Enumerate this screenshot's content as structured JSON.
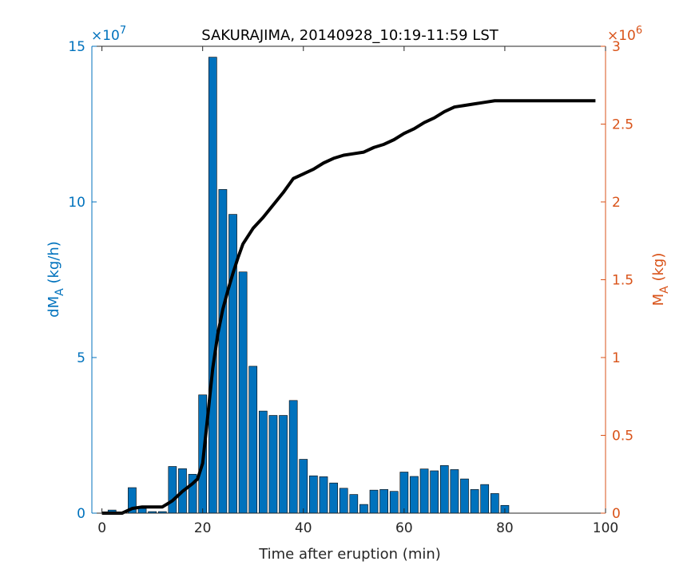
{
  "chart_data": {
    "type": "bar+line",
    "title": "SAKURAJIMA, 20140928_10:19-11:59 LST",
    "xlabel": "Time after eruption (min)",
    "ylabel_left": {
      "main": "dM",
      "sub": "A",
      "unit": " (kg/h)"
    },
    "ylabel_right": {
      "main": "M",
      "sub": "A",
      "unit": " (kg)"
    },
    "xlim": [
      -2,
      100
    ],
    "ylim_left": [
      0,
      15
    ],
    "ylim_right": [
      0,
      3
    ],
    "left_exponent": {
      "base": "×10",
      "power": "7"
    },
    "right_exponent": {
      "base": "×10",
      "power": "6"
    },
    "x_ticks": [
      "0",
      "20",
      "40",
      "60",
      "80",
      "100"
    ],
    "x_tick_values": [
      0,
      20,
      40,
      60,
      80,
      100
    ],
    "y_left_ticks": [
      "0",
      "5",
      "10",
      "15"
    ],
    "y_left_tick_values": [
      0,
      5,
      10,
      15
    ],
    "y_right_ticks": [
      "0",
      "0.5",
      "1",
      "1.5",
      "2",
      "2.5",
      "3"
    ],
    "y_right_tick_values": [
      0,
      0.5,
      1,
      1.5,
      2,
      2.5,
      3
    ],
    "bars": {
      "name": "dM_A",
      "color": "#0072BD",
      "bar_width_min": 1.6,
      "x": [
        2,
        4,
        6,
        8,
        10,
        12,
        14,
        16,
        18,
        20,
        22,
        24,
        26,
        28,
        30,
        32,
        34,
        36,
        38,
        40,
        42,
        44,
        46,
        48,
        50,
        52,
        54,
        56,
        58,
        60,
        62,
        64,
        66,
        68,
        70,
        72,
        74,
        76,
        78,
        80
      ],
      "values": [
        0.1,
        0.02,
        0.82,
        0.15,
        0.05,
        0.05,
        1.5,
        1.43,
        1.25,
        3.8,
        14.65,
        10.4,
        9.6,
        7.75,
        4.72,
        3.28,
        3.14,
        3.14,
        3.62,
        1.73,
        1.2,
        1.17,
        0.97,
        0.8,
        0.6,
        0.28,
        0.74,
        0.76,
        0.7,
        1.32,
        1.18,
        1.42,
        1.36,
        1.53,
        1.4,
        1.1,
        0.76,
        0.92,
        0.63,
        0.25
      ]
    },
    "line": {
      "name": "M_A",
      "color": "#000000",
      "x": [
        0,
        4,
        6,
        8,
        10,
        12,
        14,
        16,
        18,
        19,
        20,
        21,
        22,
        23,
        24,
        25,
        26,
        27,
        28,
        30,
        32,
        34,
        36,
        38,
        40,
        42,
        44,
        46,
        48,
        50,
        52,
        54,
        56,
        58,
        60,
        62,
        64,
        66,
        68,
        70,
        72,
        74,
        76,
        78,
        80,
        85,
        90,
        95,
        98
      ],
      "values": [
        0,
        0,
        0.03,
        0.04,
        0.04,
        0.04,
        0.08,
        0.14,
        0.19,
        0.22,
        0.32,
        0.62,
        0.93,
        1.15,
        1.31,
        1.43,
        1.54,
        1.64,
        1.73,
        1.83,
        1.9,
        1.98,
        2.06,
        2.15,
        2.18,
        2.21,
        2.25,
        2.28,
        2.3,
        2.31,
        2.32,
        2.35,
        2.37,
        2.4,
        2.44,
        2.47,
        2.51,
        2.54,
        2.58,
        2.61,
        2.62,
        2.63,
        2.64,
        2.65,
        2.65,
        2.65,
        2.65,
        2.65,
        2.65
      ]
    },
    "colors": {
      "left_axis": "#0072BD",
      "right_axis": "#D95319",
      "line": "#000000"
    },
    "grid": false
  }
}
